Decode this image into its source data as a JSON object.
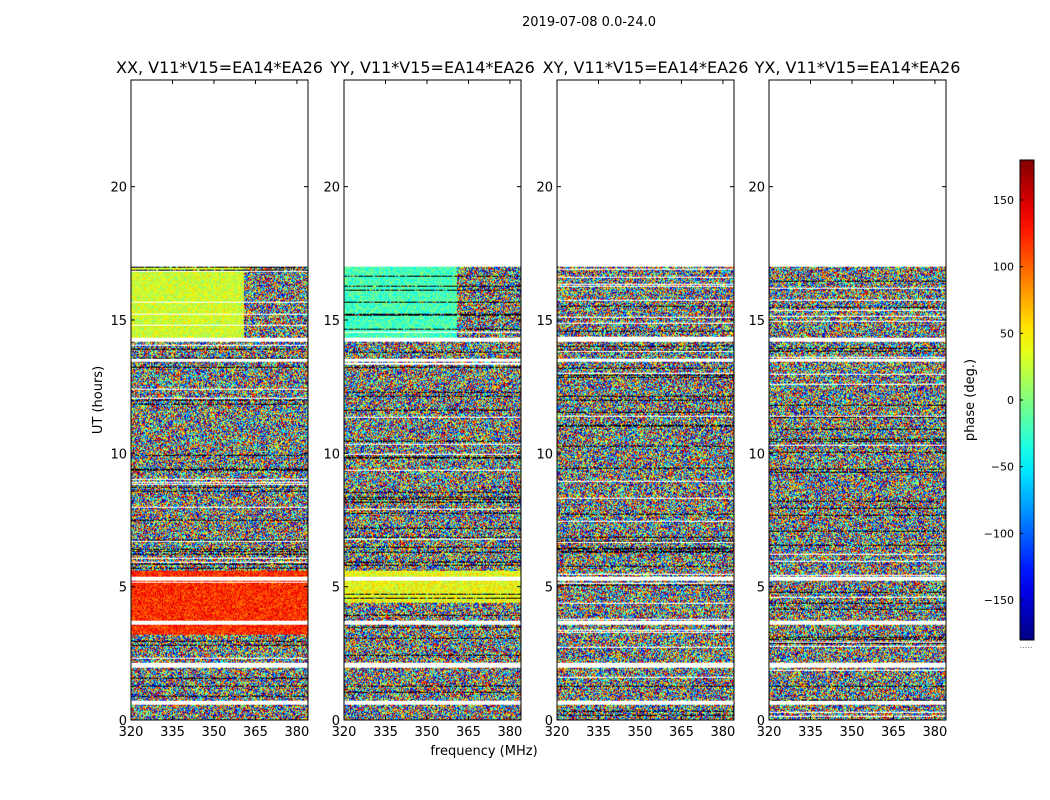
{
  "chart_data": {
    "type": "heatmap",
    "suptitle": "2019-07-08 0.0-24.0",
    "xlabel": "frequency (MHz)",
    "ylabel": "UT (hours)",
    "colorbar_label": "phase (deg.)",
    "xlim": [
      320,
      384
    ],
    "ylim": [
      0,
      24
    ],
    "x_ticks": [
      320,
      335,
      350,
      365,
      380
    ],
    "y_ticks": [
      0,
      5,
      10,
      15,
      20
    ],
    "colorbar_range": [
      -180,
      180
    ],
    "colorbar_ticks": [
      150,
      100,
      50,
      0,
      -50,
      -100,
      -150
    ],
    "colorbar_tick_labels": [
      "150",
      "100",
      "50",
      "0",
      "−50",
      "−100",
      "−150"
    ],
    "colorbar_note": ".....",
    "data_extent_hours": [
      0,
      17
    ],
    "flagged_ut_gaps": [
      [
        0.55,
        0.7
      ],
      [
        1.95,
        2.15
      ],
      [
        3.55,
        3.7
      ],
      [
        5.2,
        5.35
      ],
      [
        13.45,
        13.55
      ],
      [
        14.2,
        14.35
      ],
      [
        17,
        24
      ]
    ],
    "panels": [
      {
        "title": "XX, V11*V15=EA14*EA26",
        "coherent_blocks": [
          {
            "ut": [
              14.3,
              17.0
            ],
            "freq": [
              320,
              361
            ],
            "phase_deg": 30
          },
          {
            "ut": [
              3.2,
              5.6
            ],
            "freq": [
              320,
              384
            ],
            "phase_deg": 120
          }
        ]
      },
      {
        "title": "YY, V11*V15=EA14*EA26",
        "coherent_blocks": [
          {
            "ut": [
              14.3,
              17.0
            ],
            "freq": [
              320,
              361
            ],
            "phase_deg": -20
          },
          {
            "ut": [
              4.4,
              5.6
            ],
            "freq": [
              320,
              384
            ],
            "phase_deg": 40
          }
        ]
      },
      {
        "title": "XY, V11*V15=EA14*EA26",
        "coherent_blocks": []
      },
      {
        "title": "YX, V11*V15=EA14*EA26",
        "coherent_blocks": []
      }
    ]
  }
}
